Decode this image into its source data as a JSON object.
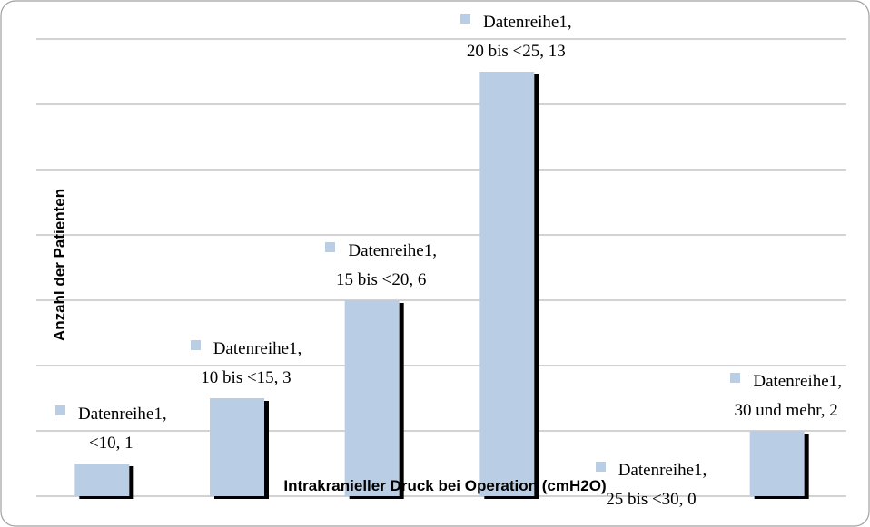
{
  "chart_data": {
    "type": "bar",
    "x_label": "Intrakranieller Druck bei Operation (cmH2O)",
    "y_label": "Anzahl der Patienten",
    "values": [
      1,
      3,
      6,
      13,
      0,
      2
    ],
    "value_labels": [
      "Datenreihe1,\n<10, 1",
      "Datenreihe1,\n10 bis <15, 3",
      "Datenreihe1,\n15 bis <20, 6",
      "Datenreihe1,\n20 bis <25, 13",
      "Datenreihe1,\n25 bis <30, 0",
      "Datenreihe1,\n30 und mehr, 2"
    ],
    "color": "#b9cde5",
    "ylim": [
      0,
      14
    ],
    "yticks": [
      0,
      2,
      4,
      6,
      8,
      10,
      12,
      14
    ],
    "grid": true
  }
}
